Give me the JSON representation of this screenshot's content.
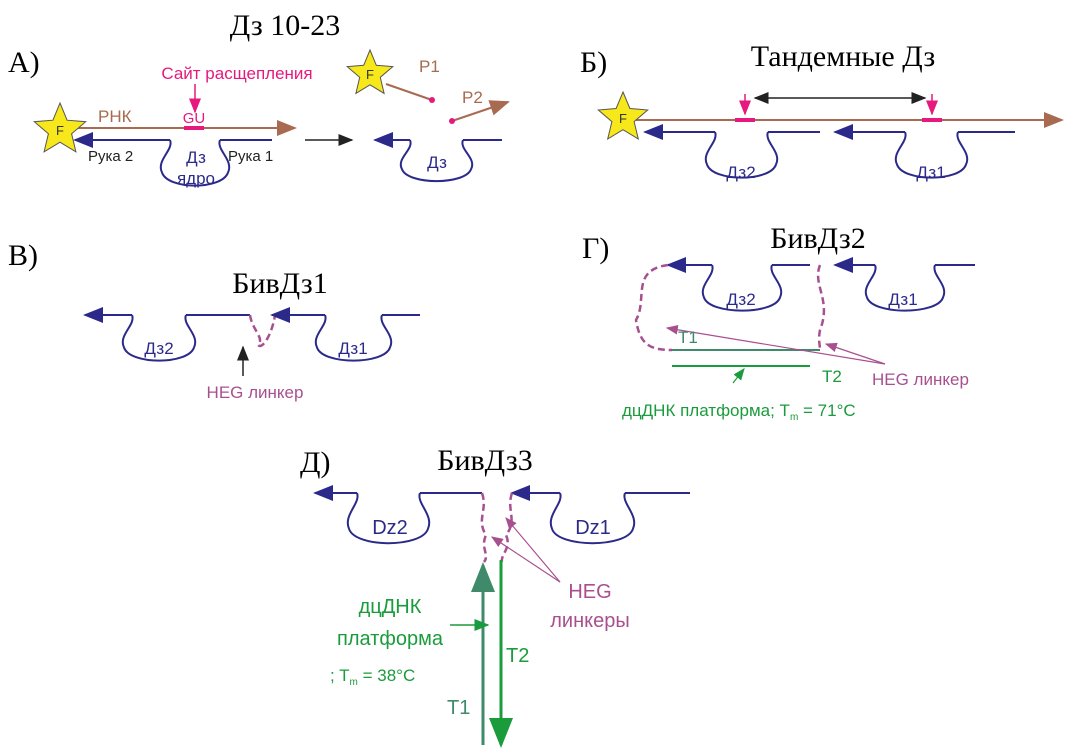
{
  "panels": [
    {
      "letter": "А)",
      "title": "Дз 10-23",
      "site_label": "Сайт расщепления",
      "rna": "РНК",
      "gu": "GU",
      "arm2": "Рука 2",
      "core_top": "Дз",
      "core_bottom": "ядро",
      "arm1": "Рука 1",
      "fluor": "F",
      "product1": "P1",
      "product2": "P2",
      "product_dz": "Дз",
      "product_fluor": "F"
    },
    {
      "letter": "Б)",
      "title": "Тандемные Дз",
      "fluor": "F",
      "dz2": "Дз2",
      "dz1": "Дз1"
    },
    {
      "letter": "В)",
      "title": "БивДз1",
      "dz2": "Дз2",
      "dz1": "Дз1",
      "linker": "HEG линкер"
    },
    {
      "letter": "Г)",
      "title": "БивДз2",
      "dz2": "Дз2",
      "dz1": "Дз1",
      "t1": "T1",
      "t2": "T2",
      "linker": "HEG линкер",
      "platform": "дцДНК платформа; T",
      "platform_sub": "m",
      "platform_tm": " = 71°C"
    },
    {
      "letter": "Д)",
      "title": "БивДз3",
      "dz2": "Dz2",
      "dz1": "Dz1",
      "linker_top": "HEG",
      "linker_bottom": "линкеры",
      "platform_top": "дцДНК",
      "platform_bottom": "платформа",
      "platform_t": "; T",
      "platform_sub": "m",
      "platform_tm": " = 38°C",
      "t2": "T2",
      "t1": "T1"
    }
  ]
}
